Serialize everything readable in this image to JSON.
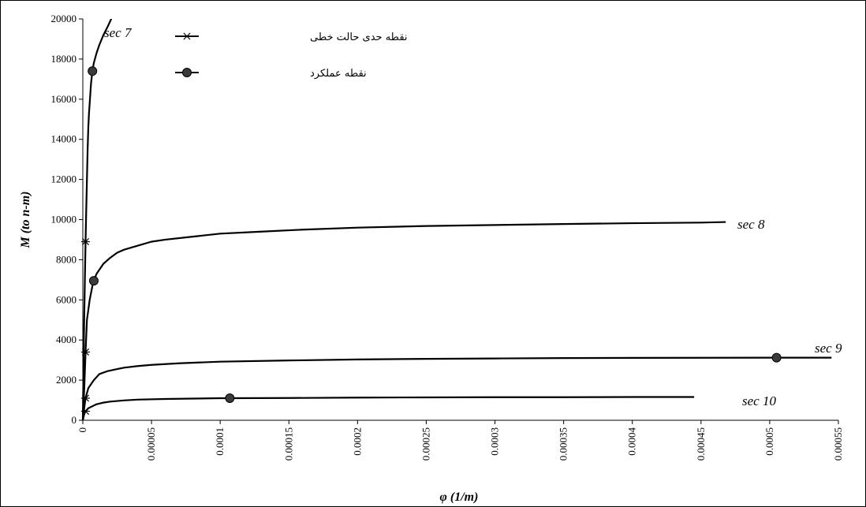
{
  "chart_data": {
    "type": "line",
    "title": "",
    "xlabel": "φ (1/m)",
    "ylabel": "M (to n-m)",
    "xlim": [
      0,
      0.00055
    ],
    "ylim": [
      0,
      20000
    ],
    "x_ticks": [
      "0",
      "0.00005",
      "0.0001",
      "0.00015",
      "0.0002",
      "0.00025",
      "0.0003",
      "0.00035",
      "0.0004",
      "0.00045",
      "0.0005",
      "0.00055"
    ],
    "y_ticks": [
      "0",
      "2000",
      "4000",
      "6000",
      "8000",
      "10000",
      "12000",
      "14000",
      "16000",
      "18000",
      "20000"
    ],
    "grid": false,
    "legend": {
      "placement": "top-left",
      "entries": [
        {
          "label": "نقطه حدی حالت خطی",
          "marker": "star"
        },
        {
          "label": "نقطه عملکرد",
          "marker": "dot"
        }
      ]
    },
    "series": [
      {
        "name": "sec 7",
        "x": [
          0,
          3e-07,
          6e-07,
          1e-06,
          1.5e-06,
          2e-06,
          2.5e-06,
          3e-06,
          3.5e-06,
          4e-06,
          4.5e-06,
          5e-06,
          5.5e-06,
          6e-06,
          7e-06,
          8e-06,
          1e-05,
          1.2e-05,
          1.5e-05,
          1.8e-05,
          2e-05,
          2.2e-05,
          2.4e-05
        ],
        "y": [
          0,
          1500,
          3200,
          5000,
          7000,
          8900,
          10500,
          12000,
          13500,
          14600,
          15300,
          15800,
          16300,
          16800,
          17400,
          17800,
          18300,
          18700,
          19200,
          19600,
          19900,
          20200,
          20500
        ],
        "linear_limit": {
          "x": 2e-06,
          "y": 8900
        },
        "performance_point": {
          "x": 7e-06,
          "y": 17400
        }
      },
      {
        "name": "sec 8",
        "x": [
          0,
          1e-06,
          2e-06,
          3e-06,
          5e-06,
          7e-06,
          8e-06,
          1e-05,
          1.5e-05,
          2e-05,
          2.5e-05,
          3e-05,
          4e-05,
          5e-05,
          6e-05,
          8e-05,
          0.0001,
          0.00013,
          0.00016,
          0.0002,
          0.00025,
          0.0003,
          0.00035,
          0.0004,
          0.00045,
          0.000468
        ],
        "y": [
          0,
          1500,
          3400,
          5000,
          6000,
          6700,
          6950,
          7300,
          7800,
          8100,
          8350,
          8500,
          8700,
          8900,
          9000,
          9150,
          9300,
          9400,
          9500,
          9600,
          9680,
          9730,
          9780,
          9820,
          9850,
          9880
        ],
        "linear_limit": {
          "x": 2e-06,
          "y": 3400
        },
        "performance_point": {
          "x": 8e-06,
          "y": 6950
        }
      },
      {
        "name": "sec 9",
        "x": [
          0,
          1e-06,
          2e-06,
          4e-06,
          8e-06,
          1.2e-05,
          1.8e-05,
          2.5e-05,
          3e-05,
          4e-05,
          5e-05,
          7e-05,
          0.0001,
          0.00015,
          0.0002,
          0.00025,
          0.0003,
          0.00035,
          0.0004,
          0.00045,
          0.0005,
          0.000505,
          0.000545
        ],
        "y": [
          0,
          600,
          1100,
          1600,
          2000,
          2300,
          2450,
          2550,
          2620,
          2700,
          2760,
          2840,
          2920,
          2980,
          3030,
          3060,
          3080,
          3100,
          3110,
          3115,
          3120,
          3120,
          3120
        ],
        "linear_limit": {
          "x": 2e-06,
          "y": 1100
        },
        "performance_point": {
          "x": 0.000505,
          "y": 3120
        }
      },
      {
        "name": "sec 10",
        "x": [
          0,
          1e-06,
          2e-06,
          4e-06,
          7e-06,
          1e-05,
          1.5e-05,
          2e-05,
          3e-05,
          4e-05,
          6e-05,
          8e-05,
          0.0001,
          0.000107,
          0.00015,
          0.0002,
          0.00025,
          0.0003,
          0.00035,
          0.0004,
          0.000445
        ],
        "y": [
          0,
          300,
          450,
          600,
          700,
          800,
          880,
          930,
          990,
          1030,
          1060,
          1080,
          1100,
          1100,
          1110,
          1130,
          1140,
          1150,
          1150,
          1160,
          1160
        ],
        "linear_limit": {
          "x": 2e-06,
          "y": 450
        },
        "performance_point": {
          "x": 0.000107,
          "y": 1100
        }
      }
    ]
  }
}
